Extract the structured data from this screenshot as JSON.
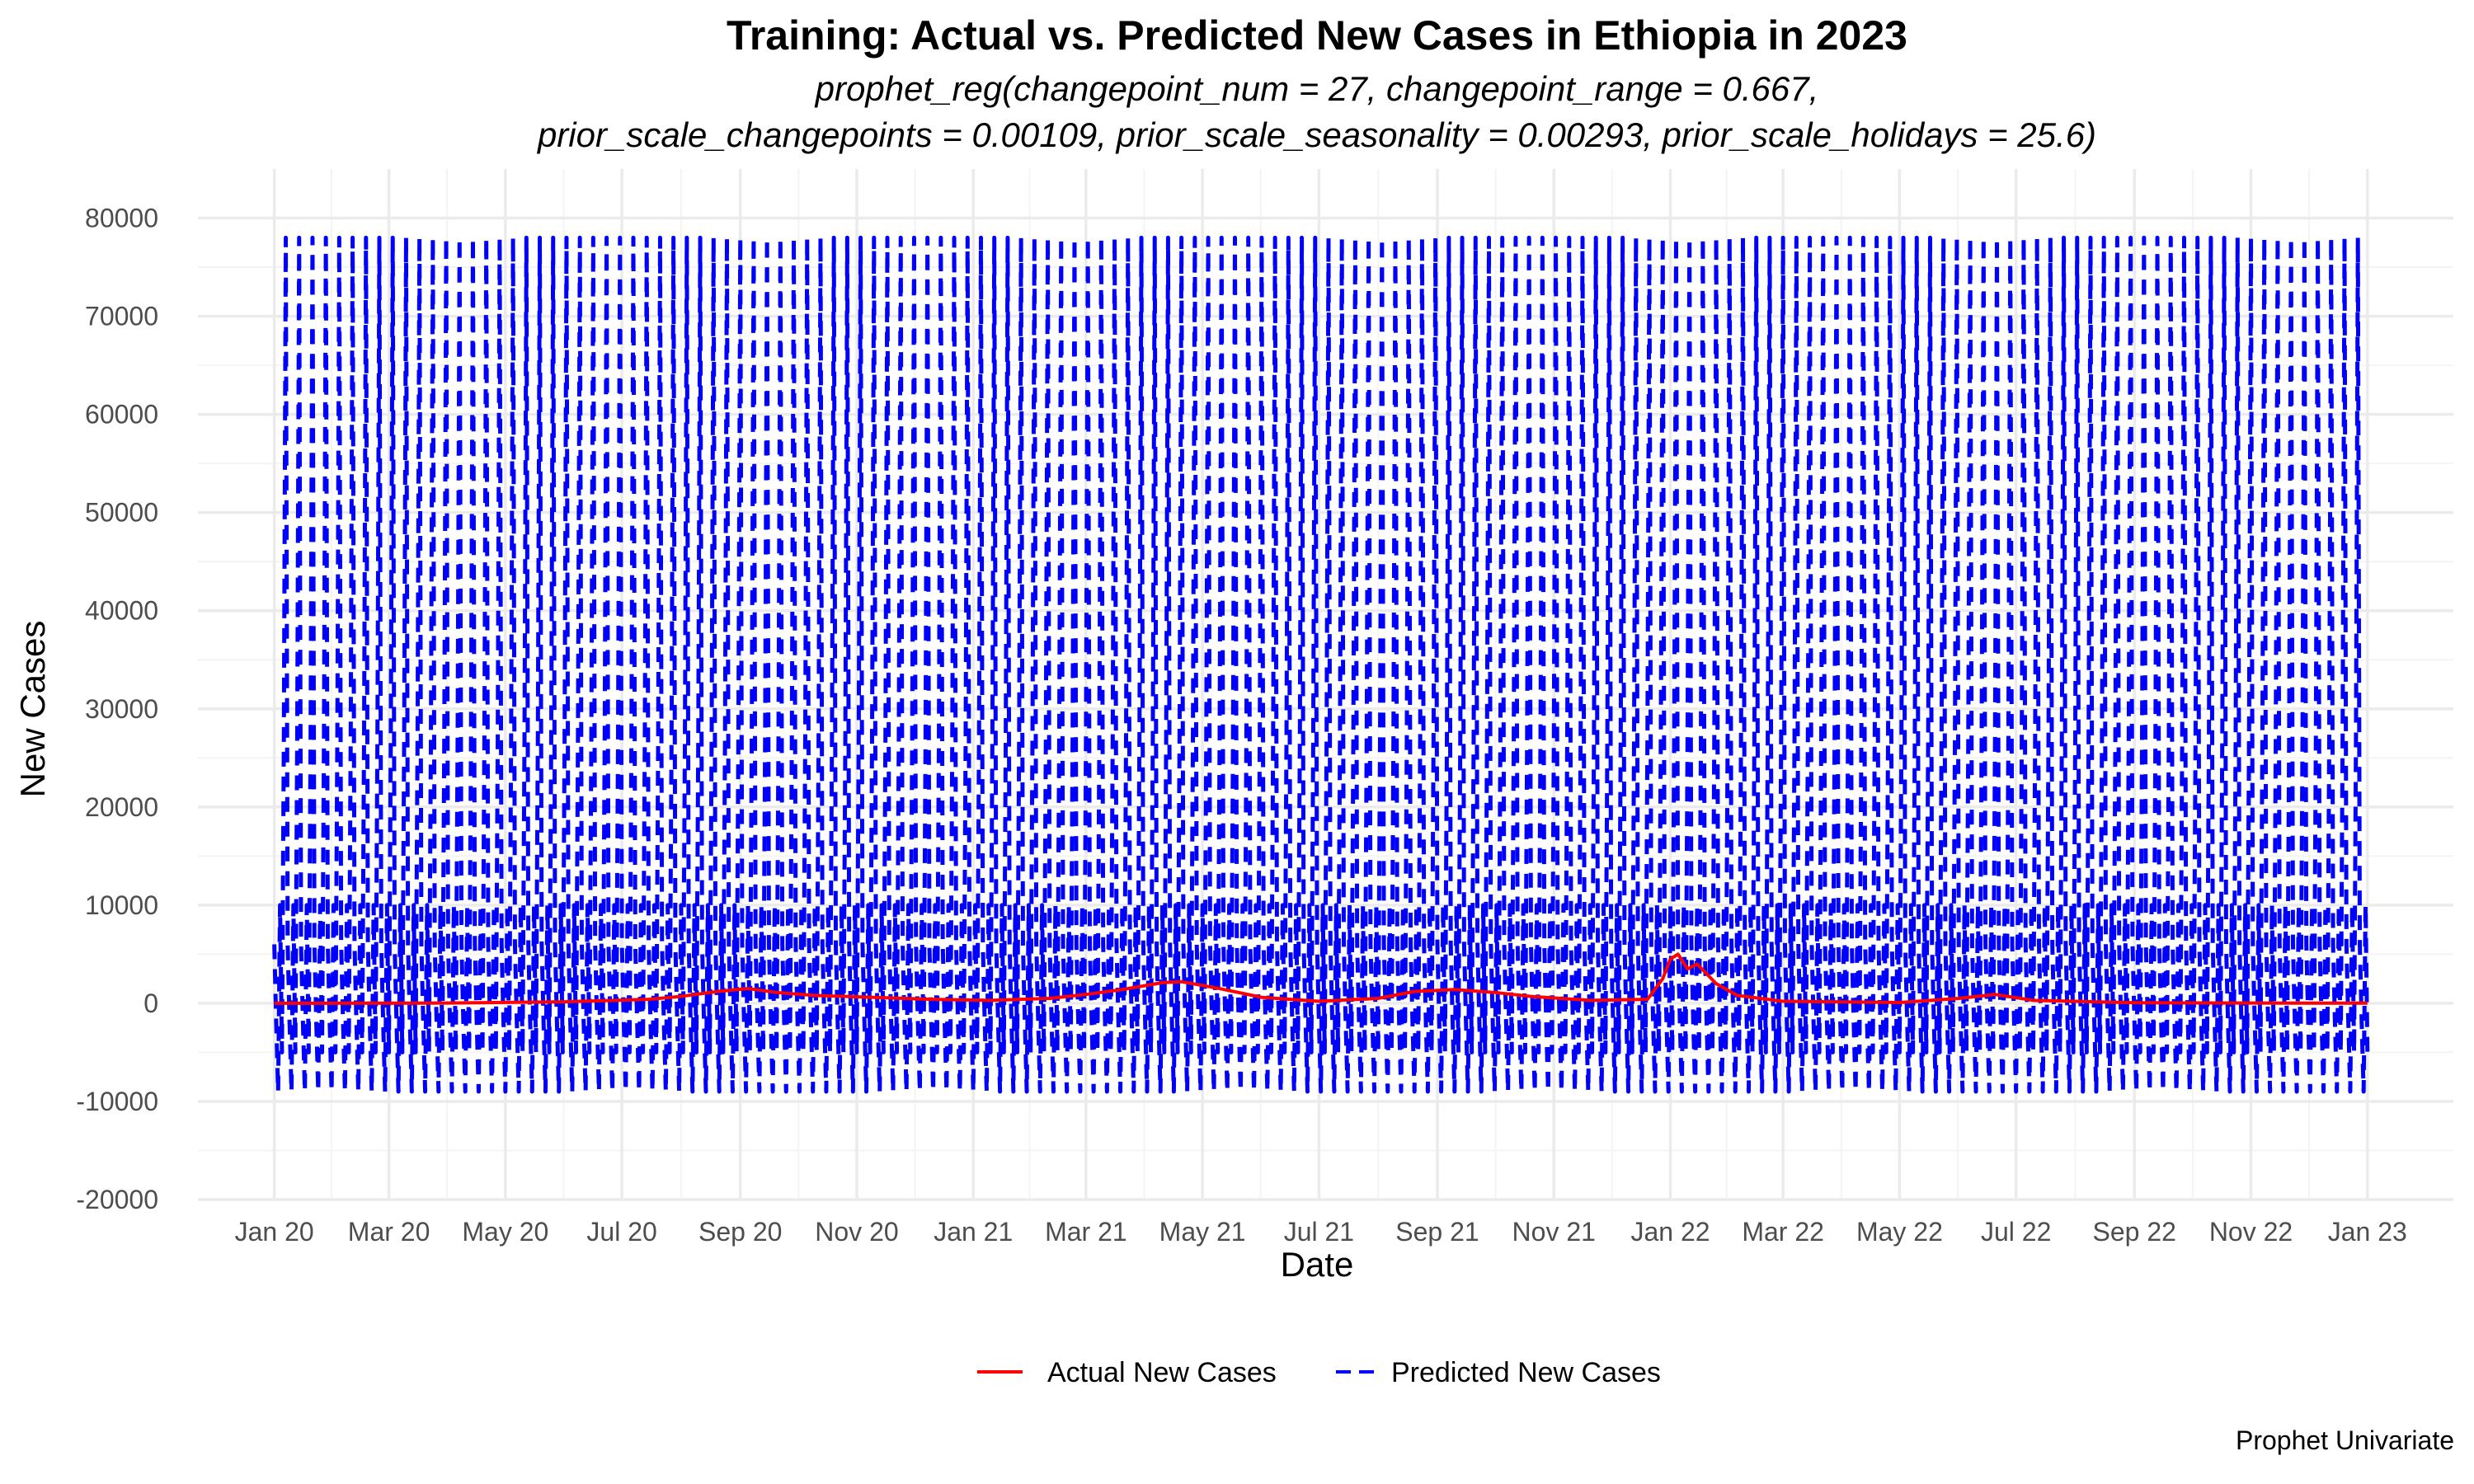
{
  "chart_data": {
    "type": "line",
    "title": "Training: Actual vs. Predicted New Cases in Ethiopia in 2023",
    "subtitle_line1": "prophet_reg(changepoint_num = 27, changepoint_range = 0.667,",
    "subtitle_line2": "prior_scale_changepoints = 0.00109, prior_scale_seasonality = 0.00293, prior_scale_holidays = 25.6)",
    "xlabel": "Date",
    "ylabel": "New Cases",
    "caption": "Prophet Univariate",
    "xlim": [
      "2019-11-22",
      "2023-02-15"
    ],
    "ylim": [
      -20000,
      85000
    ],
    "y_ticks": [
      -20000,
      -10000,
      0,
      10000,
      20000,
      30000,
      40000,
      50000,
      60000,
      70000,
      80000
    ],
    "x_ticks": [
      {
        "date": "2020-01-01",
        "label": "Jan 20"
      },
      {
        "date": "2020-03-01",
        "label": "Mar 20"
      },
      {
        "date": "2020-05-01",
        "label": "May 20"
      },
      {
        "date": "2020-07-01",
        "label": "Jul 20"
      },
      {
        "date": "2020-09-01",
        "label": "Sep 20"
      },
      {
        "date": "2020-11-01",
        "label": "Nov 20"
      },
      {
        "date": "2021-01-01",
        "label": "Jan 21"
      },
      {
        "date": "2021-03-01",
        "label": "Mar 21"
      },
      {
        "date": "2021-05-01",
        "label": "May 21"
      },
      {
        "date": "2021-07-01",
        "label": "Jul 21"
      },
      {
        "date": "2021-09-01",
        "label": "Sep 21"
      },
      {
        "date": "2021-11-01",
        "label": "Nov 21"
      },
      {
        "date": "2022-01-01",
        "label": "Jan 22"
      },
      {
        "date": "2022-03-01",
        "label": "Mar 22"
      },
      {
        "date": "2022-05-01",
        "label": "May 22"
      },
      {
        "date": "2022-07-01",
        "label": "Jul 22"
      },
      {
        "date": "2022-09-01",
        "label": "Sep 22"
      },
      {
        "date": "2022-11-01",
        "label": "Nov 22"
      },
      {
        "date": "2023-01-01",
        "label": "Jan 23"
      }
    ],
    "legend_position": "bottom",
    "grid": true,
    "series": [
      {
        "name": "Actual New Cases",
        "color": "#ff0000",
        "line_style": "solid",
        "points": [
          [
            "2020-01-01",
            0
          ],
          [
            "2020-04-01",
            20
          ],
          [
            "2020-06-01",
            150
          ],
          [
            "2020-07-15",
            400
          ],
          [
            "2020-08-01",
            700
          ],
          [
            "2020-08-20",
            1200
          ],
          [
            "2020-09-05",
            1500
          ],
          [
            "2020-09-20",
            1100
          ],
          [
            "2020-10-10",
            800
          ],
          [
            "2020-11-10",
            600
          ],
          [
            "2020-12-10",
            400
          ],
          [
            "2021-01-10",
            300
          ],
          [
            "2021-02-10",
            500
          ],
          [
            "2021-03-01",
            900
          ],
          [
            "2021-03-20",
            1400
          ],
          [
            "2021-04-10",
            2100
          ],
          [
            "2021-04-20",
            2200
          ],
          [
            "2021-05-10",
            1500
          ],
          [
            "2021-06-01",
            600
          ],
          [
            "2021-07-01",
            200
          ],
          [
            "2021-08-01",
            500
          ],
          [
            "2021-08-20",
            1200
          ],
          [
            "2021-09-10",
            1400
          ],
          [
            "2021-10-01",
            1100
          ],
          [
            "2021-10-20",
            700
          ],
          [
            "2021-11-20",
            300
          ],
          [
            "2021-12-20",
            400
          ],
          [
            "2021-12-28",
            2500
          ],
          [
            "2022-01-01",
            4500
          ],
          [
            "2022-01-05",
            5000
          ],
          [
            "2022-01-10",
            3500
          ],
          [
            "2022-01-15",
            4000
          ],
          [
            "2022-01-25",
            2000
          ],
          [
            "2022-02-05",
            800
          ],
          [
            "2022-03-01",
            200
          ],
          [
            "2022-05-01",
            80
          ],
          [
            "2022-06-01",
            500
          ],
          [
            "2022-06-20",
            900
          ],
          [
            "2022-07-10",
            300
          ],
          [
            "2022-09-01",
            60
          ],
          [
            "2022-11-01",
            20
          ],
          [
            "2023-01-01",
            10
          ]
        ]
      },
      {
        "name": "Predicted New Cases",
        "color": "#0000ff",
        "line_style": "dashed",
        "weekly_pattern": [
          6000,
          -2000,
          -9000,
          10000,
          -5000,
          27000,
          78000
        ],
        "start": "2020-01-01",
        "end": "2023-01-01"
      }
    ]
  }
}
